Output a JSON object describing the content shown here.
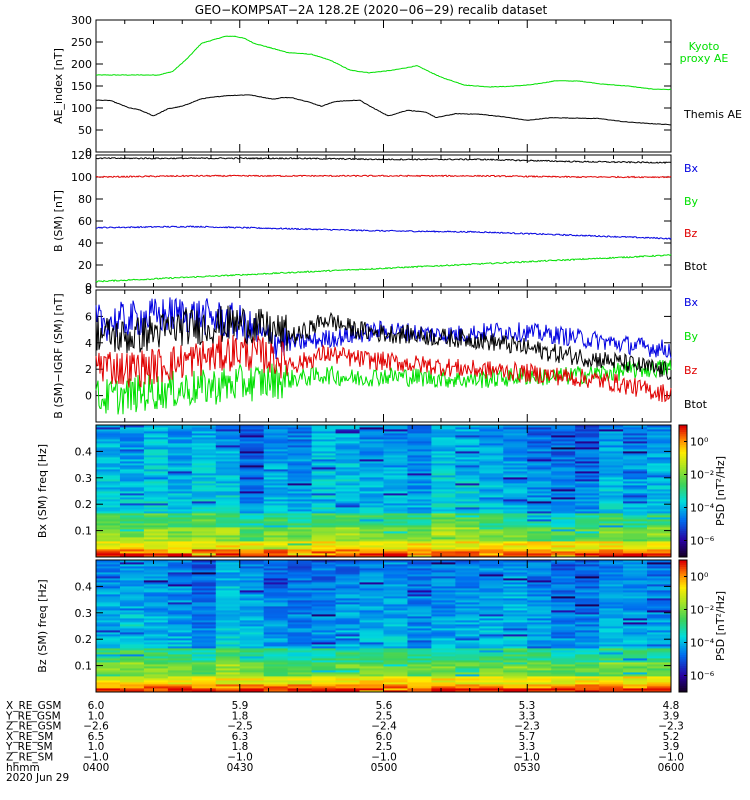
{
  "title": "GEO−KOMPSAT−2A 128.2E (2020−06−29) recalib dataset",
  "colors": {
    "black": "#000000",
    "red": "#e00000",
    "green": "#00e000",
    "blue": "#0000e0"
  },
  "chart_data": [
    {
      "type": "line",
      "ylabel": "AE_index [nT]",
      "ylim": [
        0,
        300
      ],
      "yticks": [
        0,
        50,
        100,
        150,
        200,
        250,
        300
      ],
      "xlim": [
        0,
        120
      ],
      "series": [
        {
          "name": "Kyoto proxy AE",
          "color": "green",
          "x": [
            0,
            8,
            13,
            16,
            19,
            22,
            27,
            29,
            31,
            33,
            38,
            40,
            45,
            49,
            53,
            57,
            62,
            67,
            72,
            77,
            82,
            86,
            91,
            96,
            101,
            106,
            111,
            116,
            120
          ],
          "y": [
            175,
            175,
            175,
            183,
            212,
            247,
            263,
            263,
            258,
            247,
            232,
            226,
            222,
            208,
            186,
            180,
            186,
            196,
            170,
            152,
            148,
            149,
            153,
            162,
            161,
            154,
            150,
            143,
            142
          ]
        },
        {
          "name": "Themis AE",
          "color": "black",
          "x": [
            0,
            3,
            7,
            9,
            12,
            15,
            18,
            22,
            27,
            32,
            37,
            39,
            41,
            44,
            47,
            50,
            55,
            57,
            61,
            65,
            69,
            71,
            75,
            80,
            85,
            90,
            95,
            100,
            105,
            110,
            115,
            120
          ],
          "y": [
            118,
            117,
            100,
            96,
            82,
            98,
            104,
            121,
            128,
            130,
            120,
            124,
            123,
            115,
            104,
            115,
            118,
            105,
            82,
            95,
            90,
            78,
            87,
            86,
            80,
            72,
            78,
            77,
            76,
            69,
            65,
            62
          ]
        }
      ]
    },
    {
      "type": "line",
      "ylabel": "B (SM) [nT]",
      "ylim": [
        0,
        120
      ],
      "yticks": [
        0,
        20,
        40,
        60,
        80,
        100,
        120
      ],
      "xlim": [
        0,
        120
      ],
      "series": [
        {
          "name": "Bx",
          "color": "blue",
          "x": [
            0,
            20,
            40,
            60,
            80,
            100,
            120
          ],
          "y": [
            54,
            55,
            53,
            51,
            50,
            47,
            44
          ]
        },
        {
          "name": "By",
          "color": "green",
          "x": [
            0,
            20,
            40,
            60,
            80,
            100,
            120
          ],
          "y": [
            5,
            9,
            13,
            17,
            21,
            25,
            29
          ]
        },
        {
          "name": "Bz",
          "color": "red",
          "x": [
            0,
            20,
            40,
            60,
            80,
            100,
            120
          ],
          "y": [
            100,
            101,
            101,
            101,
            101,
            100,
            100
          ]
        },
        {
          "name": "Btot",
          "color": "black",
          "x": [
            0,
            20,
            40,
            60,
            80,
            100,
            120
          ],
          "y": [
            117,
            117,
            117,
            116,
            116,
            114,
            113
          ]
        }
      ]
    },
    {
      "type": "line",
      "ylabel": "B (SM)−IGRF (SM) [nT]",
      "ylim": [
        -2,
        8
      ],
      "yticks": [
        0,
        2,
        4,
        6,
        8
      ],
      "xlim": [
        0,
        120
      ],
      "series": [
        {
          "name": "Bx",
          "color": "blue",
          "x": [
            0,
            6,
            12,
            18,
            24,
            30,
            36,
            42,
            48,
            54,
            60,
            66,
            72,
            78,
            84,
            90,
            96,
            102,
            108,
            114,
            120
          ],
          "y": [
            5.5,
            5.7,
            6.0,
            6.2,
            5.9,
            5.5,
            4.2,
            4.0,
            4.3,
            4.6,
            5.0,
            4.8,
            4.6,
            4.7,
            4.9,
            4.8,
            4.6,
            4.3,
            4.0,
            3.7,
            3.5
          ]
        },
        {
          "name": "By",
          "color": "green",
          "x": [
            0,
            6,
            12,
            18,
            24,
            30,
            36,
            42,
            48,
            54,
            60,
            66,
            72,
            78,
            84,
            90,
            96,
            102,
            108,
            114,
            120
          ],
          "y": [
            -0.2,
            0.0,
            0.3,
            0.5,
            0.7,
            0.9,
            1.1,
            1.3,
            1.6,
            1.3,
            1.5,
            1.4,
            1.3,
            1.2,
            1.3,
            1.5,
            1.4,
            1.6,
            1.8,
            2.0,
            2.1
          ]
        },
        {
          "name": "Bz",
          "color": "red",
          "x": [
            0,
            6,
            12,
            18,
            24,
            30,
            36,
            42,
            48,
            54,
            60,
            66,
            72,
            78,
            84,
            90,
            96,
            102,
            108,
            114,
            120
          ],
          "y": [
            2.5,
            2.0,
            2.2,
            2.6,
            3.0,
            3.4,
            3.0,
            2.4,
            3.2,
            2.8,
            2.6,
            2.4,
            2.2,
            2.0,
            1.9,
            1.7,
            1.5,
            1.3,
            1.0,
            0.5,
            0.1
          ]
        },
        {
          "name": "Btot",
          "color": "black",
          "x": [
            0,
            6,
            12,
            18,
            24,
            30,
            36,
            42,
            48,
            54,
            60,
            66,
            72,
            78,
            84,
            90,
            96,
            102,
            108,
            114,
            120
          ],
          "y": [
            4.8,
            4.4,
            4.8,
            5.2,
            5.3,
            5.5,
            5.0,
            4.5,
            5.8,
            5.0,
            4.7,
            4.6,
            4.4,
            4.3,
            4.0,
            3.6,
            3.2,
            2.9,
            2.6,
            2.2,
            1.8
          ]
        }
      ]
    },
    {
      "type": "heatmap",
      "ylabel": "Bx (SM) freq [Hz]",
      "ylim": [
        0,
        0.5
      ],
      "yticks": [
        "0.1",
        "0.2",
        "0.3",
        "0.4"
      ],
      "colorbar": {
        "label": "PSD [nT²/Hz]",
        "ticks": [
          "10⁰",
          "10⁻²",
          "10⁻⁴",
          "10⁻⁶"
        ],
        "range": [
          -7,
          1
        ]
      }
    },
    {
      "type": "heatmap",
      "ylabel": "Bz (SM) freq [Hz]",
      "ylim": [
        0,
        0.5
      ],
      "yticks": [
        "0.1",
        "0.2",
        "0.3",
        "0.4"
      ],
      "colorbar": {
        "label": "PSD [nT²/Hz]",
        "ticks": [
          "10⁰",
          "10⁻²",
          "10⁻⁴",
          "10⁻⁶"
        ],
        "range": [
          -7,
          1
        ]
      }
    }
  ],
  "ephemeris": {
    "rows": [
      {
        "label": "X_RE_GSM",
        "values": [
          "6.0",
          "5.9",
          "5.6",
          "5.3",
          "4.8"
        ]
      },
      {
        "label": "Y_RE_GSM",
        "values": [
          "1.0",
          "1.8",
          "2.5",
          "3.3",
          "3.9"
        ]
      },
      {
        "label": "Z_RE_GSM",
        "values": [
          "−2.6",
          "−2.5",
          "−2.4",
          "−2.3",
          "−2.3"
        ]
      },
      {
        "label": "X_RE_SM",
        "values": [
          "6.5",
          "6.3",
          "6.0",
          "5.7",
          "5.2"
        ]
      },
      {
        "label": "Y_RE_SM",
        "values": [
          "1.0",
          "1.8",
          "2.5",
          "3.3",
          "3.9"
        ]
      },
      {
        "label": "Z_RE_SM",
        "values": [
          "−1.0",
          "−1.0",
          "−1.0",
          "−1.0",
          "−1.0"
        ]
      },
      {
        "label": "hhmm",
        "values": [
          "0400",
          "0430",
          "0500",
          "0530",
          "0600"
        ]
      }
    ],
    "date": "2020 Jun 29"
  }
}
